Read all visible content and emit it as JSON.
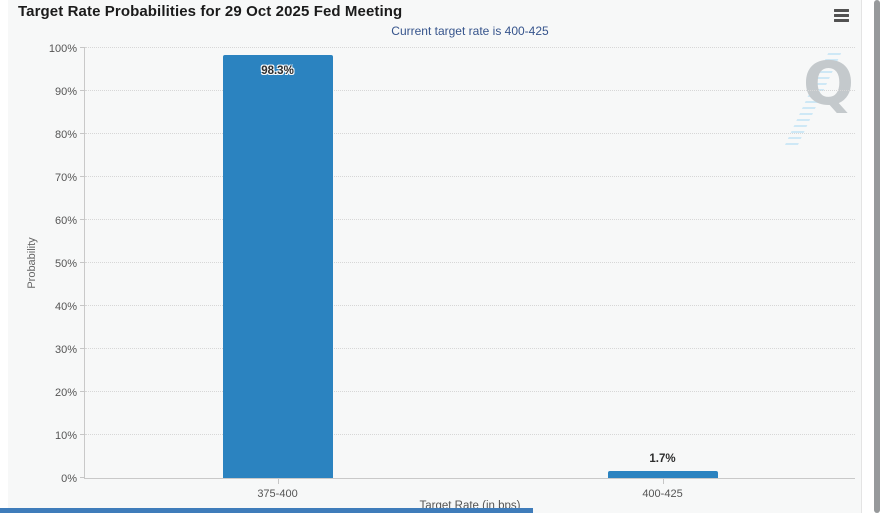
{
  "chart_data": {
    "type": "bar",
    "title": "Target Rate Probabilities for 29 Oct 2025 Fed Meeting",
    "subtitle": "Current target rate is 400-425",
    "categories": [
      "375-400",
      "400-425"
    ],
    "values": [
      98.3,
      1.7
    ],
    "data_labels": [
      "98.3%",
      "1.7%"
    ],
    "xlabel": "Target Rate (in bps)",
    "ylabel": "Probability",
    "ylim": [
      0,
      100
    ],
    "ytick_step": 10,
    "ytick_labels": [
      "0%",
      "10%",
      "20%",
      "30%",
      "40%",
      "50%",
      "60%",
      "70%",
      "80%",
      "90%",
      "100%"
    ],
    "grid": "horizontal-dotted",
    "legend": "none",
    "bar_color": "#2b83c0"
  },
  "colors": {
    "bar": "#2b83c0",
    "subtitle_text": "#36548c",
    "panel_background": "#f7f8f8",
    "axis_text": "#555555"
  },
  "icons": {
    "menu": "hamburger-icon"
  },
  "watermark": {
    "letter": "Q"
  }
}
